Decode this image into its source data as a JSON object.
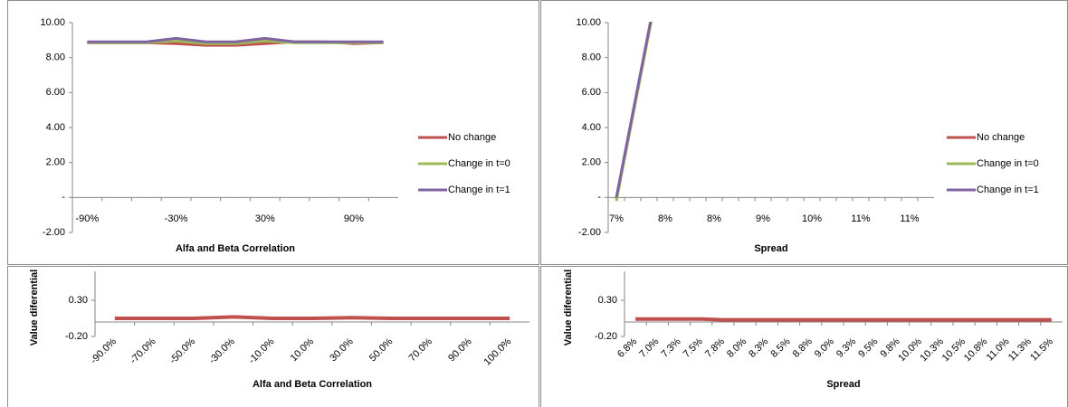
{
  "chart_data": [
    {
      "type": "line",
      "categories": [
        "-90%",
        null,
        null,
        "-30%",
        null,
        null,
        "30%",
        null,
        null,
        "90%",
        null
      ],
      "series": [
        {
          "name": "No change",
          "color": "#c0504d",
          "values": [
            8.85,
            8.85,
            8.85,
            8.8,
            8.7,
            8.7,
            8.8,
            8.9,
            8.9,
            8.8,
            8.85
          ]
        },
        {
          "name": "Change in t=0",
          "color": "#9bbb59",
          "values": [
            8.85,
            8.85,
            8.85,
            8.95,
            8.8,
            8.8,
            8.95,
            8.85,
            8.85,
            8.85,
            8.85
          ]
        },
        {
          "name": "Change in t=1",
          "color": "#8064a2",
          "values": [
            8.9,
            8.9,
            8.9,
            9.1,
            8.9,
            8.9,
            9.1,
            8.9,
            8.9,
            8.9,
            8.9
          ]
        }
      ],
      "x_label": "Alfa and Beta Correlation",
      "ylim": [
        -2,
        10
      ],
      "yticks": [
        {
          "value": -2,
          "label": "-2.00"
        },
        {
          "value": 0,
          "label": "-"
        },
        {
          "value": 2,
          "label": "2.00"
        },
        {
          "value": 4,
          "label": "4.00"
        },
        {
          "value": 6,
          "label": "6.00"
        },
        {
          "value": 8,
          "label": "8.00"
        },
        {
          "value": 10,
          "label": "10.00"
        }
      ],
      "legend": "right"
    },
    {
      "type": "line",
      "categories": [
        "7%",
        null,
        null,
        "8%",
        null,
        null,
        "8%",
        null,
        null,
        "9%",
        null,
        null,
        "10%",
        null,
        null,
        "11%",
        null,
        null,
        "11%",
        null
      ],
      "series": [
        {
          "name": "No change",
          "color": "#c0504d",
          "values": [
            -0.1,
            4.7,
            9.5,
            14.3,
            null,
            null,
            null,
            null,
            null,
            null,
            null,
            null,
            null,
            null,
            null,
            null,
            null,
            null,
            null,
            null
          ]
        },
        {
          "name": "Change in t=0",
          "color": "#9bbb59",
          "values": [
            -0.2,
            4.6,
            9.4,
            14.2,
            null,
            null,
            null,
            null,
            null,
            null,
            null,
            null,
            null,
            null,
            null,
            null,
            null,
            null,
            null,
            null
          ]
        },
        {
          "name": "Change in t=1",
          "color": "#8064a2",
          "values": [
            0,
            4.8,
            9.6,
            14.4,
            null,
            null,
            null,
            null,
            null,
            null,
            null,
            null,
            null,
            null,
            null,
            null,
            null,
            null,
            null,
            null
          ]
        }
      ],
      "x_label": "Spread",
      "ylim": [
        -2,
        10
      ],
      "yticks": [
        {
          "value": -2,
          "label": "-2.00"
        },
        {
          "value": 0,
          "label": "-"
        },
        {
          "value": 2,
          "label": "2.00"
        },
        {
          "value": 4,
          "label": "4.00"
        },
        {
          "value": 6,
          "label": "6.00"
        },
        {
          "value": 8,
          "label": "8.00"
        },
        {
          "value": 10,
          "label": "10.00"
        }
      ],
      "legend": "right"
    },
    {
      "type": "line",
      "categories": [
        "-90.0%",
        "-70.0%",
        "-50.0%",
        "-30.0%",
        "-10.0%",
        "10.0%",
        "30.0%",
        "50.0%",
        "70.0%",
        "90.0%",
        "100.0%"
      ],
      "values": [
        0.05,
        0.05,
        0.05,
        0.07,
        0.05,
        0.05,
        0.06,
        0.05,
        0.05,
        0.05,
        0.05
      ],
      "color": "#c0504d",
      "x_label": "Alfa and Beta Correlation",
      "y_label": "Value diferential",
      "ylim": [
        -0.2,
        0.7
      ],
      "yticks": [
        {
          "value": -0.2,
          "label": "-0.20"
        },
        {
          "value": 0.3,
          "label": "0.30"
        }
      ]
    },
    {
      "type": "line",
      "categories": [
        "6.8%",
        "7.0%",
        "7.3%",
        "7.5%",
        "7.8%",
        "8.0%",
        "8.3%",
        "8.5%",
        "8.8%",
        "9.0%",
        "9.3%",
        "9.5%",
        "9.8%",
        "10.0%",
        "10.3%",
        "10.5%",
        "10.8%",
        "11.0%",
        "11.3%",
        "11.5%"
      ],
      "values": [
        0.04,
        0.04,
        0.04,
        0.04,
        0.03,
        0.03,
        0.03,
        0.03,
        0.03,
        0.03,
        0.03,
        0.03,
        0.03,
        0.03,
        0.03,
        0.03,
        0.03,
        0.03,
        0.03,
        0.03
      ],
      "color": "#c0504d",
      "x_label": "Spread",
      "y_label": "Value diferential",
      "ylim": [
        -0.2,
        0.7
      ],
      "yticks": [
        {
          "value": -0.2,
          "label": "-0.20"
        },
        {
          "value": 0.3,
          "label": "0.30"
        }
      ]
    }
  ]
}
